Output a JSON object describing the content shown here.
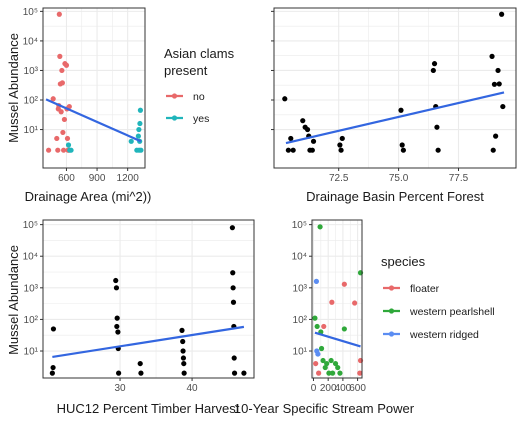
{
  "colors": {
    "background": "#ffffff",
    "grid": "#ebebeb",
    "panel_border": "#333333",
    "trend": "#3366e0",
    "point_default": "#000000",
    "no": "#e8696a",
    "yes": "#20b5bb",
    "floater": "#e8696a",
    "western pearlshell": "#2fa83a",
    "western ridged": "#5b8df2"
  },
  "chart_data": [
    {
      "type": "scatter",
      "panel": "top-left",
      "xlabel": "Drainage Area (mi^2))",
      "ylabel": "Mussel Abundance",
      "xlim": [
        370,
        1370
      ],
      "ylim": [
        0.5,
        130000.0
      ],
      "y_scale": "log",
      "xticks": [
        {
          "value": 600,
          "label": "600"
        },
        {
          "value": 900,
          "label": "900"
        },
        {
          "value": 1200,
          "label": "1200"
        }
      ],
      "yticks": [
        {
          "value": 10,
          "label": "10^1"
        },
        {
          "value": 100,
          "label": "10^2"
        },
        {
          "value": 1000,
          "label": "10^3"
        },
        {
          "value": 10000,
          "label": "10^4"
        },
        {
          "value": 100000,
          "label": "10^5"
        }
      ],
      "legend": {
        "title_lines": [
          "Asian clams",
          "present"
        ],
        "position": "right",
        "entries": [
          {
            "label": "no",
            "color_key": "no"
          },
          {
            "label": "yes",
            "color_key": "yes"
          }
        ]
      },
      "trend": {
        "x": [
          400,
          1330
        ],
        "y": [
          105,
          4
        ]
      },
      "points": [
        {
          "x": 425,
          "y": 2,
          "group": "no"
        },
        {
          "x": 470,
          "y": 110,
          "group": "no"
        },
        {
          "x": 505,
          "y": 5,
          "group": "no"
        },
        {
          "x": 515,
          "y": 2,
          "group": "no"
        },
        {
          "x": 520,
          "y": 50,
          "group": "no"
        },
        {
          "x": 525,
          "y": 65,
          "group": "no"
        },
        {
          "x": 530,
          "y": 80000,
          "group": "no"
        },
        {
          "x": 535,
          "y": 3000,
          "group": "no"
        },
        {
          "x": 540,
          "y": 350,
          "group": "no"
        },
        {
          "x": 548,
          "y": 40,
          "group": "no"
        },
        {
          "x": 555,
          "y": 1000,
          "group": "no"
        },
        {
          "x": 560,
          "y": 380,
          "group": "no"
        },
        {
          "x": 565,
          "y": 8,
          "group": "no"
        },
        {
          "x": 572,
          "y": 2,
          "group": "no"
        },
        {
          "x": 580,
          "y": 22,
          "group": "no"
        },
        {
          "x": 585,
          "y": 1700,
          "group": "no"
        },
        {
          "x": 600,
          "y": 1500,
          "group": "no"
        },
        {
          "x": 605,
          "y": 50,
          "group": "no"
        },
        {
          "x": 610,
          "y": 5,
          "group": "no"
        },
        {
          "x": 615,
          "y": 2,
          "group": "no"
        },
        {
          "x": 622,
          "y": 2,
          "group": "no"
        },
        {
          "x": 628,
          "y": 60,
          "group": "no"
        },
        {
          "x": 620,
          "y": 3,
          "group": "yes"
        },
        {
          "x": 632,
          "y": 2,
          "group": "yes"
        },
        {
          "x": 645,
          "y": 2,
          "group": "yes"
        },
        {
          "x": 1235,
          "y": 4,
          "group": "yes"
        },
        {
          "x": 1290,
          "y": 2,
          "group": "yes"
        },
        {
          "x": 1305,
          "y": 6,
          "group": "yes"
        },
        {
          "x": 1310,
          "y": 10,
          "group": "yes"
        },
        {
          "x": 1312,
          "y": 2,
          "group": "yes"
        },
        {
          "x": 1318,
          "y": 4,
          "group": "yes"
        },
        {
          "x": 1320,
          "y": 16,
          "group": "yes"
        },
        {
          "x": 1325,
          "y": 45,
          "group": "yes"
        },
        {
          "x": 1330,
          "y": 2,
          "group": "yes"
        }
      ]
    },
    {
      "type": "scatter",
      "panel": "top-right",
      "xlabel": "Drainage Basin Percent Forest",
      "ylabel": "",
      "xlim": [
        69.8,
        79.9
      ],
      "ylim": [
        0.5,
        130000.0
      ],
      "y_scale": "log",
      "xticks": [
        {
          "value": 72.5,
          "label": "72.5"
        },
        {
          "value": 75,
          "label": "75.0"
        },
        {
          "value": 77.5,
          "label": "77.5"
        }
      ],
      "yticks": [
        {
          "value": 10,
          "label": ""
        },
        {
          "value": 100,
          "label": ""
        },
        {
          "value": 1000,
          "label": ""
        },
        {
          "value": 10000,
          "label": ""
        },
        {
          "value": 100000,
          "label": ""
        }
      ],
      "trend": {
        "x": [
          70.3,
          79.4
        ],
        "y": [
          3.5,
          180
        ]
      },
      "points": [
        {
          "x": 70.25,
          "y": 110
        },
        {
          "x": 70.4,
          "y": 2
        },
        {
          "x": 70.5,
          "y": 5
        },
        {
          "x": 70.6,
          "y": 2
        },
        {
          "x": 71.0,
          "y": 20
        },
        {
          "x": 71.1,
          "y": 12
        },
        {
          "x": 71.2,
          "y": 10
        },
        {
          "x": 71.25,
          "y": 6
        },
        {
          "x": 71.3,
          "y": 2
        },
        {
          "x": 71.4,
          "y": 2
        },
        {
          "x": 71.45,
          "y": 4
        },
        {
          "x": 72.55,
          "y": 3
        },
        {
          "x": 72.6,
          "y": 2
        },
        {
          "x": 72.65,
          "y": 5
        },
        {
          "x": 75.1,
          "y": 45
        },
        {
          "x": 75.15,
          "y": 3
        },
        {
          "x": 75.2,
          "y": 2
        },
        {
          "x": 76.45,
          "y": 1000
        },
        {
          "x": 76.5,
          "y": 1700
        },
        {
          "x": 76.55,
          "y": 60
        },
        {
          "x": 76.6,
          "y": 12
        },
        {
          "x": 76.65,
          "y": 2
        },
        {
          "x": 78.9,
          "y": 3000
        },
        {
          "x": 78.95,
          "y": 2
        },
        {
          "x": 79.0,
          "y": 340
        },
        {
          "x": 79.05,
          "y": 6
        },
        {
          "x": 79.15,
          "y": 1000
        },
        {
          "x": 79.2,
          "y": 350
        },
        {
          "x": 79.3,
          "y": 80000
        },
        {
          "x": 79.35,
          "y": 60
        }
      ]
    },
    {
      "type": "scatter",
      "panel": "bottom-left",
      "xlabel": "HUC12 Percent Timber Harvest",
      "ylabel": "Mussel Abundance",
      "xlim": [
        19.3,
        48.6
      ],
      "ylim": [
        1.4,
        140000.0
      ],
      "y_scale": "log",
      "xticks": [
        {
          "value": 30,
          "label": "30"
        },
        {
          "value": 40,
          "label": "40"
        }
      ],
      "yticks": [
        {
          "value": 10,
          "label": "10^1"
        },
        {
          "value": 100,
          "label": "10^2"
        },
        {
          "value": 1000,
          "label": "10^3"
        },
        {
          "value": 10000,
          "label": "10^4"
        },
        {
          "value": 100000,
          "label": "10^5"
        }
      ],
      "trend": {
        "x": [
          20.6,
          47.2
        ],
        "y": [
          6.5,
          58
        ]
      },
      "points": [
        {
          "x": 20.6,
          "y": 2
        },
        {
          "x": 20.7,
          "y": 3
        },
        {
          "x": 20.75,
          "y": 50
        },
        {
          "x": 29.4,
          "y": 1700
        },
        {
          "x": 29.5,
          "y": 1000
        },
        {
          "x": 29.55,
          "y": 60
        },
        {
          "x": 29.6,
          "y": 110
        },
        {
          "x": 29.7,
          "y": 40
        },
        {
          "x": 29.75,
          "y": 12
        },
        {
          "x": 29.8,
          "y": 2
        },
        {
          "x": 32.8,
          "y": 4
        },
        {
          "x": 32.9,
          "y": 2
        },
        {
          "x": 38.6,
          "y": 45
        },
        {
          "x": 38.7,
          "y": 20
        },
        {
          "x": 38.75,
          "y": 10
        },
        {
          "x": 38.8,
          "y": 6
        },
        {
          "x": 38.85,
          "y": 4
        },
        {
          "x": 38.9,
          "y": 2
        },
        {
          "x": 45.6,
          "y": 80000
        },
        {
          "x": 45.65,
          "y": 3000
        },
        {
          "x": 45.7,
          "y": 1000
        },
        {
          "x": 45.75,
          "y": 350
        },
        {
          "x": 45.8,
          "y": 60
        },
        {
          "x": 45.85,
          "y": 6
        },
        {
          "x": 45.9,
          "y": 2
        },
        {
          "x": 47.2,
          "y": 2
        }
      ]
    },
    {
      "type": "scatter",
      "panel": "bottom-right",
      "xlabel": "10-Year Specific Stream Power",
      "ylabel": "",
      "xlim": [
        -20,
        660
      ],
      "ylim": [
        1.4,
        140000.0
      ],
      "y_scale": "log",
      "xticks": [
        {
          "value": 0,
          "label": "0"
        },
        {
          "value": 200,
          "label": "200"
        },
        {
          "value": 400,
          "label": "400"
        },
        {
          "value": 600,
          "label": "600"
        }
      ],
      "yticks": [
        {
          "value": 10,
          "label": "10^1"
        },
        {
          "value": 100,
          "label": "10^2"
        },
        {
          "value": 1000,
          "label": "10^3"
        },
        {
          "value": 10000,
          "label": "10^4"
        },
        {
          "value": 100000,
          "label": "10^5"
        }
      ],
      "legend": {
        "title_lines": [
          "species"
        ],
        "position": "right",
        "entries": [
          {
            "label": "floater",
            "color_key": "floater"
          },
          {
            "label": "western pearlshell",
            "color_key": "western pearlshell"
          },
          {
            "label": "western ridged",
            "color_key": "western ridged"
          }
        ]
      },
      "trend": {
        "x": [
          20,
          640
        ],
        "y": [
          38,
          14
        ]
      },
      "points": [
        {
          "x": 40,
          "y": 1600,
          "group": "western ridged"
        },
        {
          "x": 45,
          "y": 10,
          "group": "western ridged"
        },
        {
          "x": 60,
          "y": 8,
          "group": "western ridged"
        },
        {
          "x": 20,
          "y": 110,
          "group": "western pearlshell"
        },
        {
          "x": 50,
          "y": 60,
          "group": "western pearlshell"
        },
        {
          "x": 90,
          "y": 85000,
          "group": "western pearlshell"
        },
        {
          "x": 100,
          "y": 40,
          "group": "western pearlshell"
        },
        {
          "x": 110,
          "y": 12,
          "group": "western pearlshell"
        },
        {
          "x": 130,
          "y": 5,
          "group": "western pearlshell"
        },
        {
          "x": 160,
          "y": 3,
          "group": "western pearlshell"
        },
        {
          "x": 180,
          "y": 4,
          "group": "western pearlshell"
        },
        {
          "x": 210,
          "y": 2,
          "group": "western pearlshell"
        },
        {
          "x": 240,
          "y": 5,
          "group": "western pearlshell"
        },
        {
          "x": 260,
          "y": 2,
          "group": "western pearlshell"
        },
        {
          "x": 300,
          "y": 4,
          "group": "western pearlshell"
        },
        {
          "x": 330,
          "y": 3,
          "group": "western pearlshell"
        },
        {
          "x": 360,
          "y": 2,
          "group": "western pearlshell"
        },
        {
          "x": 420,
          "y": 50,
          "group": "western pearlshell"
        },
        {
          "x": 640,
          "y": 3000,
          "group": "western pearlshell"
        },
        {
          "x": 30,
          "y": 4,
          "group": "floater"
        },
        {
          "x": 70,
          "y": 2,
          "group": "floater"
        },
        {
          "x": 140,
          "y": 60,
          "group": "floater"
        },
        {
          "x": 250,
          "y": 350,
          "group": "floater"
        },
        {
          "x": 420,
          "y": 1300,
          "group": "floater"
        },
        {
          "x": 560,
          "y": 330,
          "group": "floater"
        },
        {
          "x": 630,
          "y": 2,
          "group": "floater"
        },
        {
          "x": 640,
          "y": 5,
          "group": "floater"
        }
      ]
    }
  ]
}
